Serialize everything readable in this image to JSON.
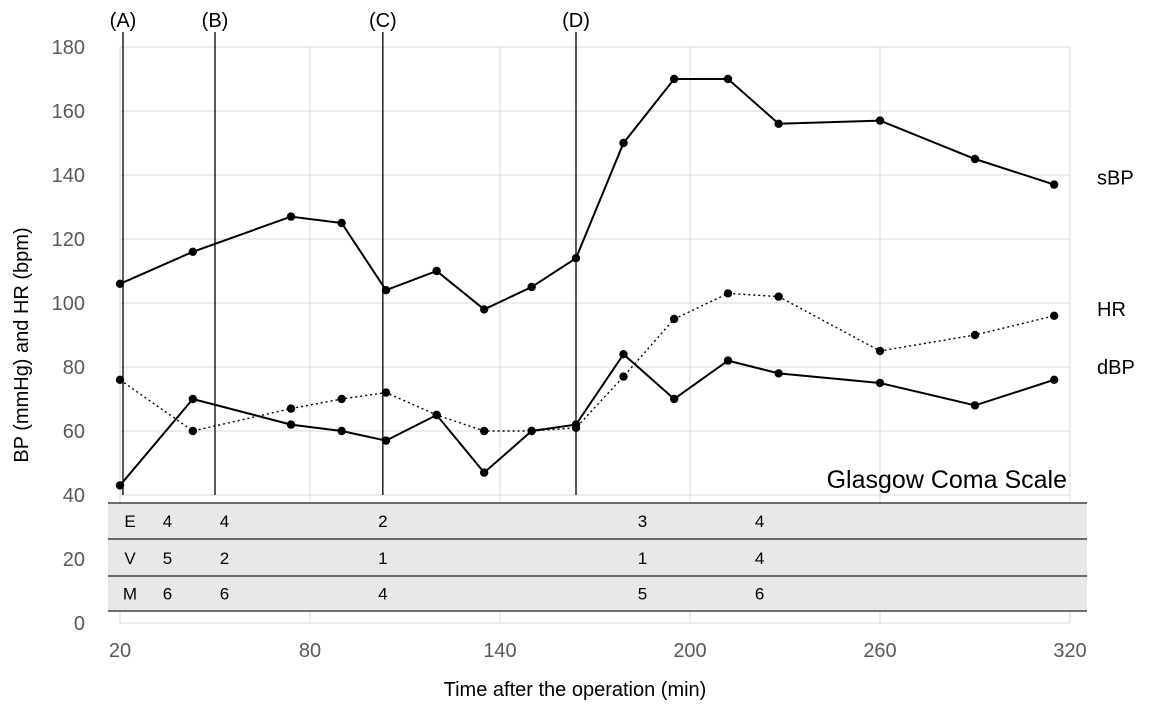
{
  "chart_data": {
    "type": "line",
    "xlabel": "Time after the operation (min)",
    "ylabel": "BP (mmHg) and HR (bpm)",
    "xlim": [
      20,
      320
    ],
    "ylim": [
      0,
      180
    ],
    "x_ticks": [
      "20",
      "80",
      "140",
      "200",
      "260",
      "320"
    ],
    "y_ticks": [
      "0",
      "20",
      "40",
      "60",
      "80",
      "100",
      "120",
      "140",
      "160",
      "180"
    ],
    "grid": true,
    "series": [
      {
        "name": "sBP",
        "style": "solid",
        "points": [
          [
            20,
            106
          ],
          [
            43,
            116
          ],
          [
            74,
            127
          ],
          [
            90,
            125
          ],
          [
            104,
            104
          ],
          [
            120,
            110
          ],
          [
            135,
            98
          ],
          [
            150,
            105
          ],
          [
            164,
            114
          ],
          [
            179,
            150
          ],
          [
            195,
            170
          ],
          [
            212,
            170
          ],
          [
            228,
            156
          ],
          [
            260,
            157
          ],
          [
            290,
            145
          ],
          [
            315,
            137
          ]
        ]
      },
      {
        "name": "HR",
        "style": "dotted",
        "points": [
          [
            20,
            76
          ],
          [
            43,
            60
          ],
          [
            74,
            67
          ],
          [
            90,
            70
          ],
          [
            104,
            72
          ],
          [
            120,
            65
          ],
          [
            135,
            60
          ],
          [
            150,
            60
          ],
          [
            164,
            61
          ],
          [
            179,
            77
          ],
          [
            195,
            95
          ],
          [
            212,
            103
          ],
          [
            228,
            102
          ],
          [
            260,
            85
          ],
          [
            290,
            90
          ],
          [
            315,
            96
          ]
        ]
      },
      {
        "name": "dBP",
        "style": "solid",
        "points": [
          [
            20,
            43
          ],
          [
            43,
            70
          ],
          [
            74,
            62
          ],
          [
            90,
            60
          ],
          [
            104,
            57
          ],
          [
            120,
            65
          ],
          [
            135,
            47
          ],
          [
            150,
            60
          ],
          [
            164,
            62
          ],
          [
            179,
            84
          ],
          [
            195,
            70
          ],
          [
            212,
            82
          ],
          [
            228,
            78
          ],
          [
            260,
            75
          ],
          [
            290,
            68
          ],
          [
            315,
            76
          ]
        ]
      }
    ],
    "events": [
      {
        "label": "(A)",
        "x": 20
      },
      {
        "label": "(B)",
        "x": 50
      },
      {
        "label": "(C)",
        "x": 103
      },
      {
        "label": "(D)",
        "x": 164
      }
    ],
    "gcs": {
      "title": "Glasgow Coma Scale",
      "rows": [
        {
          "name": "E",
          "values": [
            {
              "x": 35,
              "v": "4"
            },
            {
              "x": 53,
              "v": "4"
            },
            {
              "x": 103,
              "v": "2"
            },
            {
              "x": 185,
              "v": "3"
            },
            {
              "x": 222,
              "v": "4"
            }
          ]
        },
        {
          "name": "V",
          "values": [
            {
              "x": 35,
              "v": "5"
            },
            {
              "x": 53,
              "v": "2"
            },
            {
              "x": 103,
              "v": "1"
            },
            {
              "x": 185,
              "v": "1"
            },
            {
              "x": 222,
              "v": "4"
            }
          ]
        },
        {
          "name": "M",
          "values": [
            {
              "x": 35,
              "v": "6"
            },
            {
              "x": 53,
              "v": "6"
            },
            {
              "x": 103,
              "v": "4"
            },
            {
              "x": 185,
              "v": "5"
            },
            {
              "x": 222,
              "v": "6"
            }
          ]
        }
      ]
    }
  }
}
